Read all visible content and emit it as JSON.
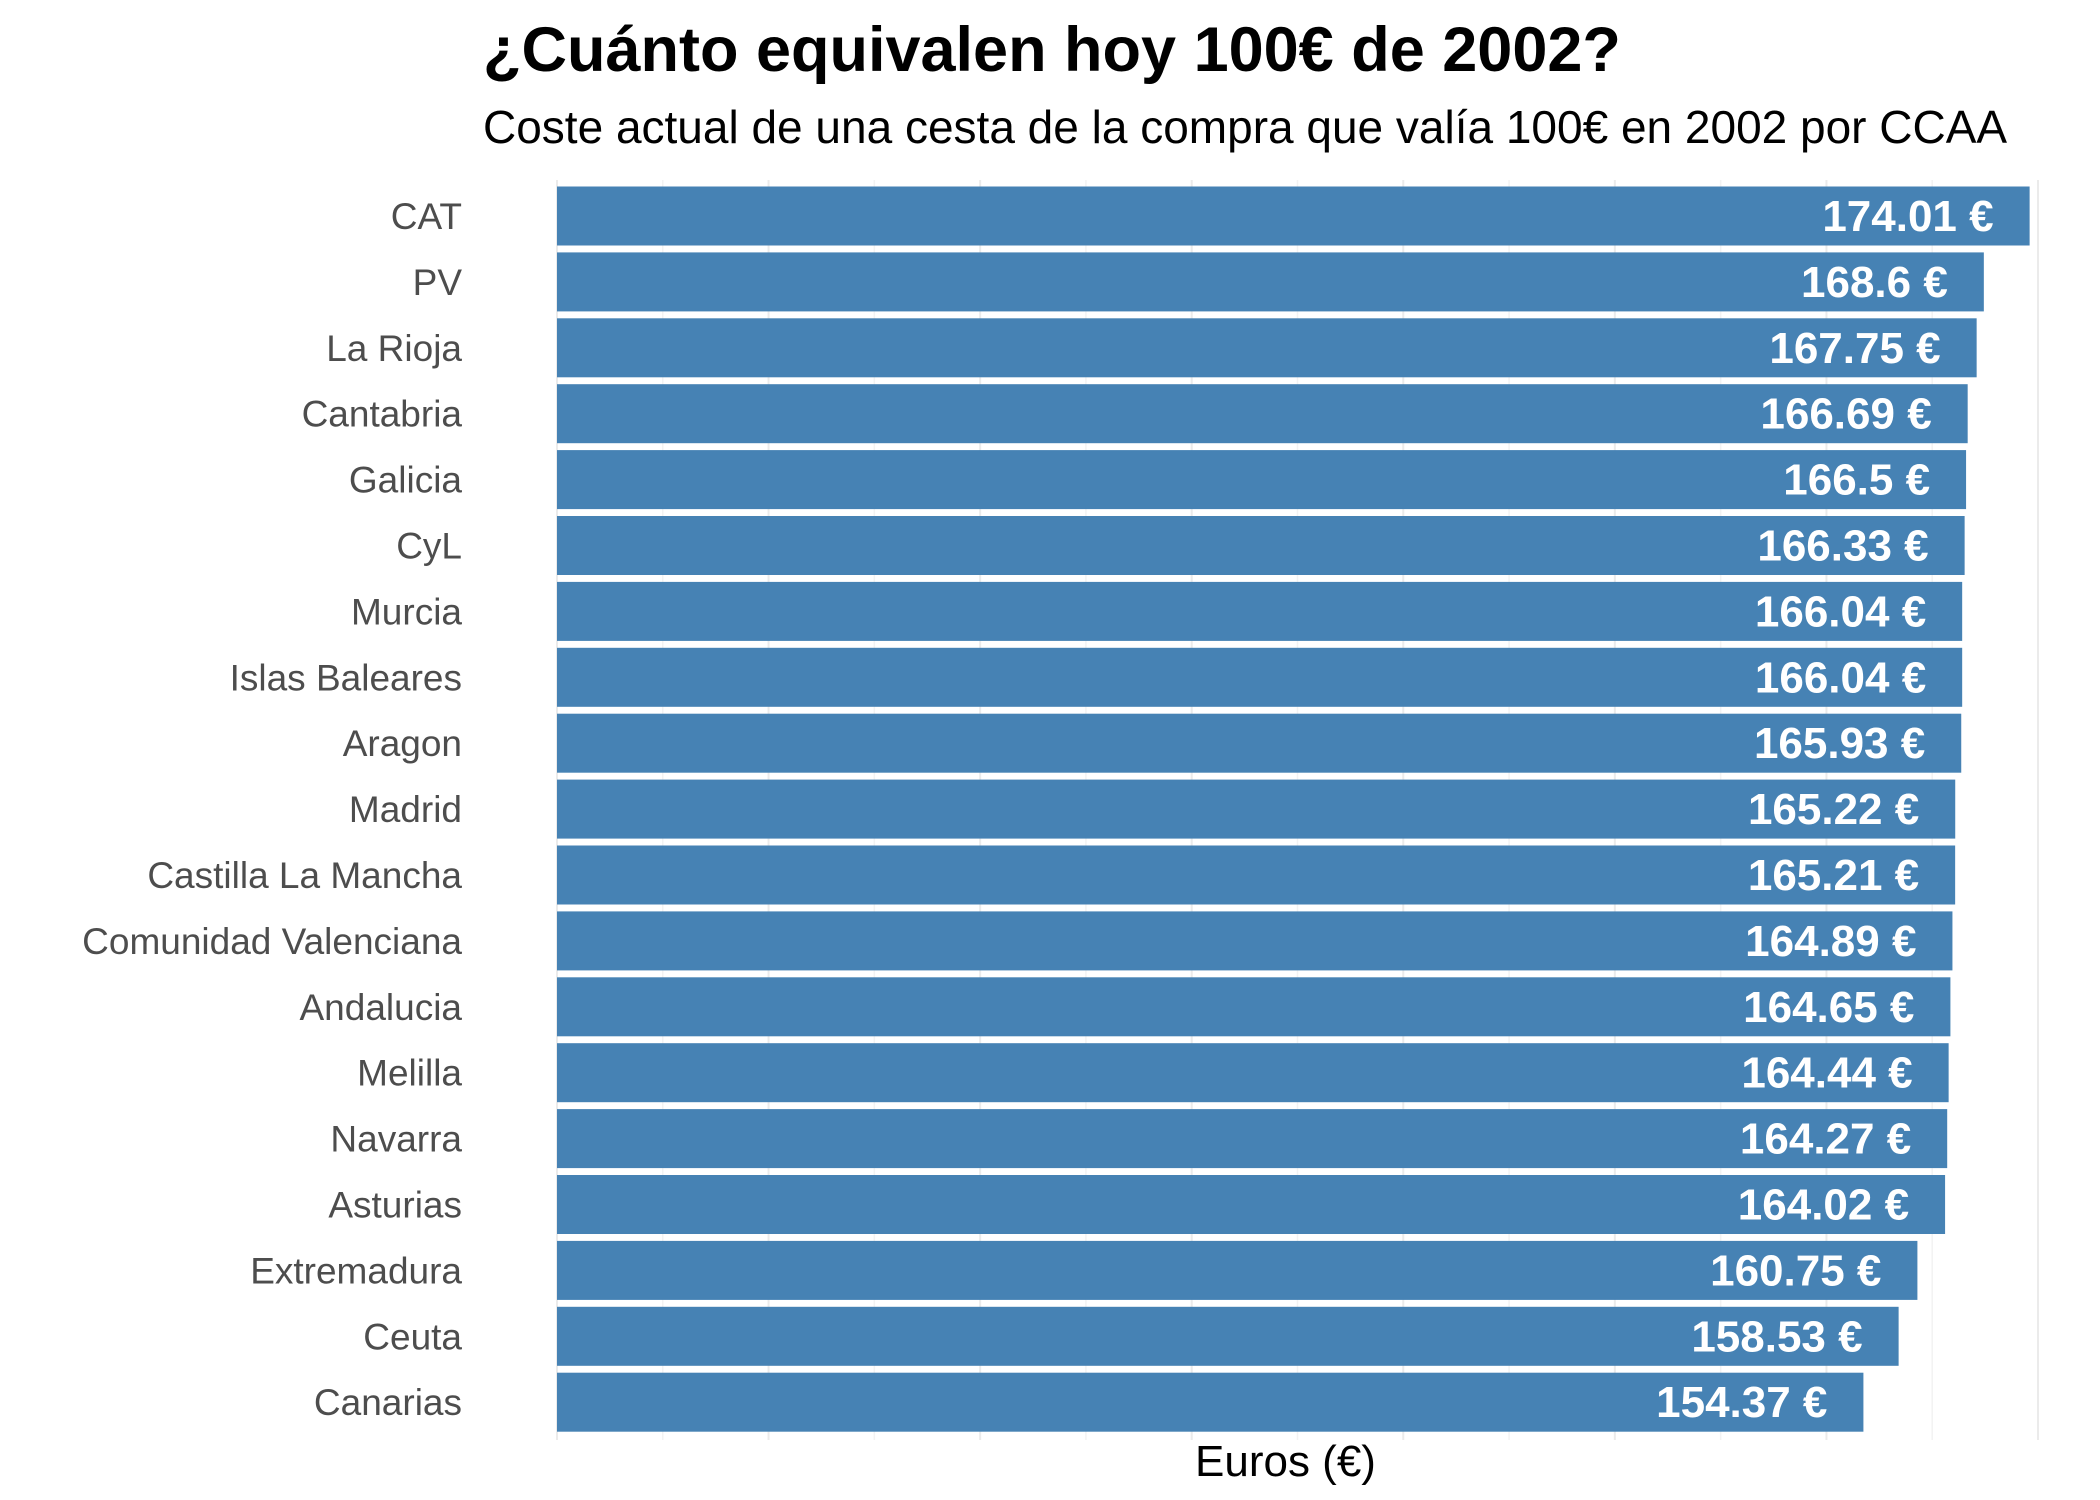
{
  "chart_data": {
    "type": "bar",
    "orientation": "horizontal",
    "title": "¿Cuánto equivalen hoy 100€ de 2002?",
    "subtitle": "Coste actual de una cesta de la compra que valía 100€ en 2002 por CCAA",
    "xlabel": "Euros (€)",
    "ylabel": "",
    "xlim": [
      0,
      175
    ],
    "grid": true,
    "bar_color": "#4682b4",
    "label_color": "#ffffff",
    "categories": [
      "CAT",
      "PV",
      "La Rioja",
      "Cantabria",
      "Galicia",
      "CyL",
      "Murcia",
      "Islas Baleares",
      "Aragon",
      "Madrid",
      "Castilla La Mancha",
      "Comunidad Valenciana",
      "Andalucia",
      "Melilla",
      "Navarra",
      "Asturias",
      "Extremadura",
      "Ceuta",
      "Canarias"
    ],
    "values": [
      174.01,
      168.6,
      167.75,
      166.69,
      166.5,
      166.33,
      166.04,
      166.04,
      165.93,
      165.22,
      165.21,
      164.89,
      164.65,
      164.44,
      164.27,
      164.02,
      160.75,
      158.53,
      154.37
    ],
    "value_labels": [
      "174.01 €",
      "168.6 €",
      "167.75 €",
      "166.69 €",
      "166.5 €",
      "166.33 €",
      "166.04 €",
      "166.04 €",
      "165.93 €",
      "165.22 €",
      "165.21 €",
      "164.89 €",
      "164.65 €",
      "164.44 €",
      "164.27 €",
      "164.02 €",
      "160.75 €",
      "158.53 €",
      "154.37 €"
    ]
  }
}
